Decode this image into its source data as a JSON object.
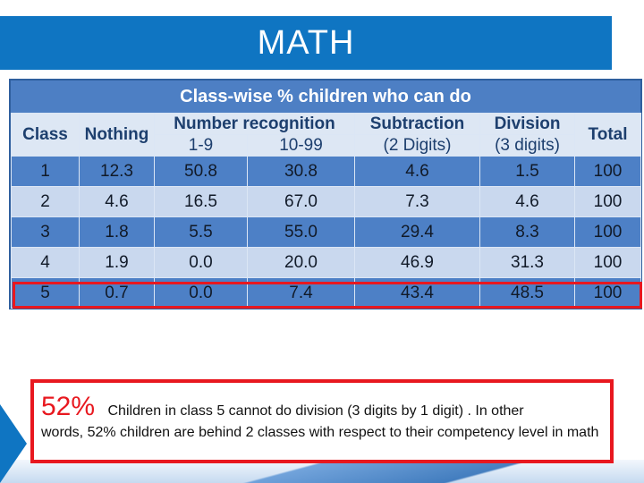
{
  "header": {
    "title": "MATH",
    "banner_color": "#0f75c2"
  },
  "table": {
    "caption": "Class-wise % children who can do",
    "headers": {
      "class": "Class",
      "nothing": "Nothing",
      "number_recognition": "Number recognition",
      "range_1_9": "1-9",
      "range_10_99": "10-99",
      "subtraction": "Subtraction",
      "subtraction_sub": "(2 Digits)",
      "division": "Division",
      "division_sub": "(3 digits)",
      "total": "Total"
    },
    "rows": [
      {
        "class": "1",
        "nothing": "12.3",
        "r1_9": "50.8",
        "r10_99": "30.8",
        "subtraction": "4.6",
        "division": "1.5",
        "total": "100"
      },
      {
        "class": "2",
        "nothing": "4.6",
        "r1_9": "16.5",
        "r10_99": "67.0",
        "subtraction": "7.3",
        "division": "4.6",
        "total": "100"
      },
      {
        "class": "3",
        "nothing": "1.8",
        "r1_9": "5.5",
        "r10_99": "55.0",
        "subtraction": "29.4",
        "division": "8.3",
        "total": "100"
      },
      {
        "class": "4",
        "nothing": "1.9",
        "r1_9": "0.0",
        "r10_99": "20.0",
        "subtraction": "46.9",
        "division": "31.3",
        "total": "100"
      },
      {
        "class": "5",
        "nothing": "0.7",
        "r1_9": "0.0",
        "r10_99": "7.4",
        "subtraction": "43.4",
        "division": "48.5",
        "total": "100"
      }
    ],
    "highlight_color": "#e8181f"
  },
  "callout": {
    "stat": "52%",
    "first_line": "Children in class 5 cannot do division (3 digits by 1 digit) . In other",
    "rest": "words, 52% children are behind 2 classes with respect to their competency level in math",
    "accent_color": "#e8181f"
  }
}
